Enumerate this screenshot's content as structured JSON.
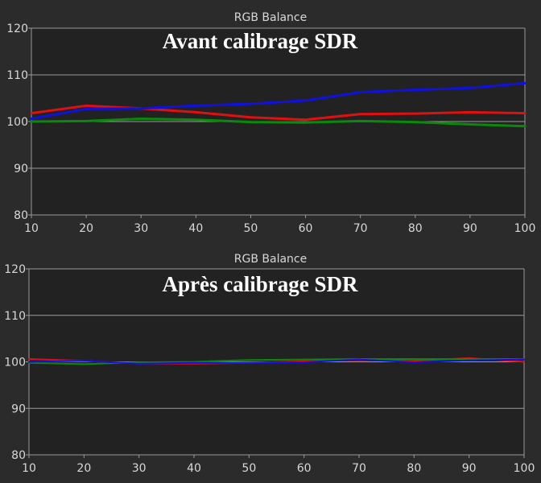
{
  "chart_data": [
    {
      "type": "line",
      "title": "Avant calibrage SDR",
      "subtitle": "RGB Balance",
      "x": [
        10,
        20,
        30,
        40,
        50,
        60,
        70,
        80,
        90,
        100
      ],
      "xlim": [
        10,
        100
      ],
      "ylim": [
        80,
        120
      ],
      "yticks": [
        80,
        90,
        100,
        110,
        120
      ],
      "xticks": [
        10,
        20,
        30,
        40,
        50,
        60,
        70,
        80,
        90,
        100
      ],
      "grid": true,
      "series": [
        {
          "color": "#e01010",
          "values": [
            101.8,
            103.4,
            102.8,
            102.0,
            100.9,
            100.4,
            101.6,
            101.7,
            102.0,
            101.8
          ]
        },
        {
          "color": "#0a8a0a",
          "values": [
            100.0,
            100.1,
            100.6,
            100.4,
            99.9,
            99.8,
            100.1,
            99.9,
            99.4,
            99.0
          ]
        },
        {
          "color": "#1010e0",
          "values": [
            100.6,
            102.7,
            102.8,
            103.4,
            103.8,
            104.5,
            106.3,
            106.8,
            107.2,
            108.2
          ]
        }
      ]
    },
    {
      "type": "line",
      "title": "Après calibrage SDR",
      "subtitle": "RGB Balance",
      "x": [
        10,
        20,
        30,
        40,
        50,
        60,
        70,
        80,
        90,
        100
      ],
      "xlim": [
        10,
        100
      ],
      "ylim": [
        80,
        120
      ],
      "yticks": [
        80,
        90,
        100,
        110,
        120
      ],
      "xticks": [
        10,
        20,
        30,
        40,
        50,
        60,
        70,
        80,
        90,
        100
      ],
      "grid": true,
      "series": [
        {
          "color": "#e01010",
          "values": [
            100.6,
            100.2,
            99.6,
            99.6,
            99.8,
            100.1,
            100.4,
            100.2,
            100.8,
            100.0
          ]
        },
        {
          "color": "#0a8a0a",
          "values": [
            99.8,
            99.5,
            99.9,
            100.0,
            100.4,
            100.5,
            100.6,
            100.6,
            100.6,
            100.6
          ]
        },
        {
          "color": "#1010e0",
          "values": [
            100.0,
            100.2,
            99.6,
            99.8,
            99.8,
            99.9,
            100.5,
            99.9,
            100.3,
            100.5
          ]
        }
      ]
    }
  ]
}
